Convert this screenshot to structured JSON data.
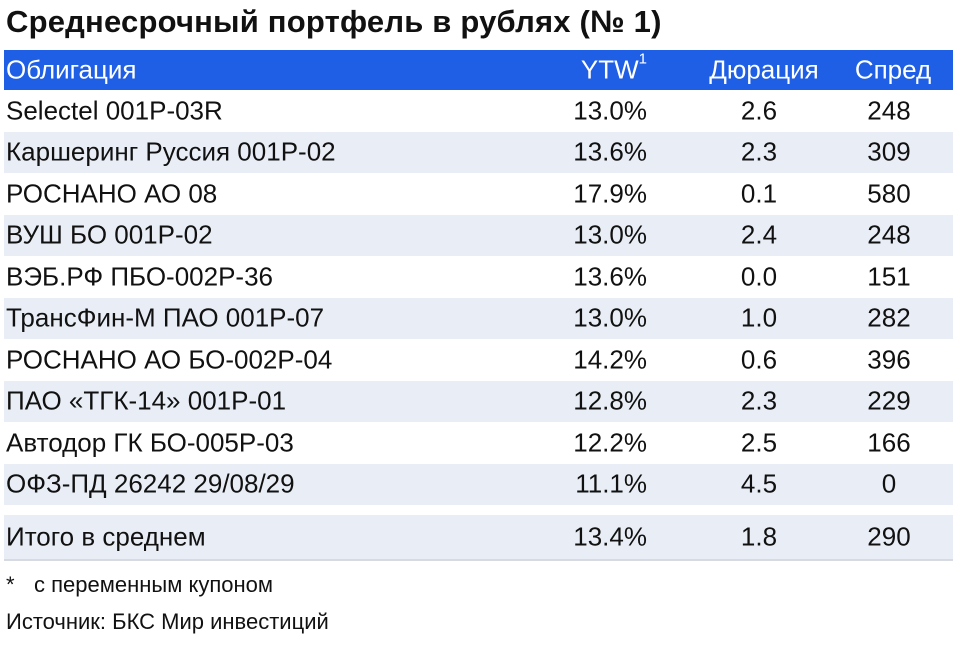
{
  "title": "Среднесрочный портфель в рублях (№ 1)",
  "colors": {
    "header_bg": "#1e5fe6",
    "row_shade": "#e9eef6"
  },
  "columns": {
    "name": "Облигация",
    "ytw": "YTW",
    "ytw_sup": "1",
    "duration": "Дюрация",
    "spread": "Спред"
  },
  "rows": [
    {
      "name": "Selectel 001P-03R",
      "ytw": "13.0%",
      "duration": "2.6",
      "spread": "248"
    },
    {
      "name": "Каршеринг Руссия 001P-02",
      "ytw": "13.6%",
      "duration": "2.3",
      "spread": "309"
    },
    {
      "name": "РОСНАНО АО 08",
      "ytw": "17.9%",
      "duration": "0.1",
      "spread": "580"
    },
    {
      "name": "ВУШ БО 001P-02",
      "ytw": "13.0%",
      "duration": "2.4",
      "spread": "248"
    },
    {
      "name": "ВЭБ.РФ ПБО-002Р-36",
      "ytw": "13.6%",
      "duration": "0.0",
      "spread": "151"
    },
    {
      "name": "ТрансФин-М ПАО 001P-07",
      "ytw": "13.0%",
      "duration": "1.0",
      "spread": "282"
    },
    {
      "name": "РОСНАНО АО БО-002P-04",
      "ytw": "14.2%",
      "duration": "0.6",
      "spread": "396"
    },
    {
      "name": "ПАО «ТГК-14» 001P-01",
      "ytw": "12.8%",
      "duration": "2.3",
      "spread": "229"
    },
    {
      "name": "Автодор ГК БО-005Р-03",
      "ytw": "12.2%",
      "duration": "2.5",
      "spread": "166"
    },
    {
      "name": "ОФЗ-ПД 26242 29/08/29",
      "ytw": "11.1%",
      "duration": "4.5",
      "spread": "0"
    }
  ],
  "total": {
    "name": "Итого в среднем",
    "ytw": "13.4%",
    "duration": "1.8",
    "spread": "290"
  },
  "footnote": {
    "mark": "*",
    "text": "с переменным купоном"
  },
  "source": "Источник: БКС Мир инвестиций"
}
